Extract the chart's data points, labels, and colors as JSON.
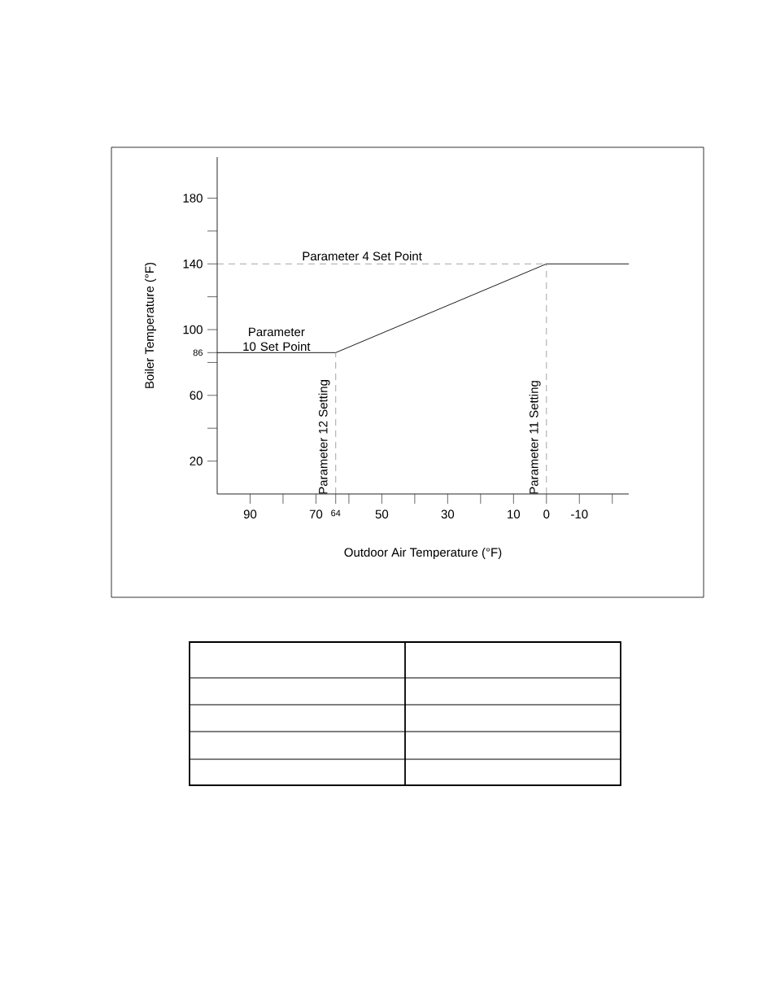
{
  "chart_data": {
    "type": "line",
    "xlabel": "Outdoor Air Temperature (°F)",
    "ylabel": "Boiler Temperature (°F)",
    "x": [
      100,
      64,
      0,
      -25
    ],
    "series": [
      {
        "color": "#000000",
        "values": [
          86,
          86,
          140,
          140
        ]
      }
    ],
    "xlim": [
      100,
      -25
    ],
    "ylim": [
      0,
      205
    ],
    "xticks": [
      90,
      {
        "value": 80,
        "label": null
      },
      70,
      64,
      {
        "value": 60,
        "label": null
      },
      50,
      {
        "value": 40,
        "label": null
      },
      30,
      {
        "value": 20,
        "label": null
      },
      10,
      0,
      -10,
      {
        "value": -20,
        "label": null
      }
    ],
    "yticks": [
      20,
      {
        "value": 40,
        "label": null
      },
      60,
      {
        "value": 80,
        "label": null
      },
      86,
      100,
      {
        "value": 120,
        "label": null
      },
      140,
      {
        "value": 160,
        "label": null
      },
      180
    ],
    "ref_lines": [
      {
        "axis": "y",
        "value": 140,
        "label": "Parameter 4 Set Point",
        "color": "#666666",
        "line_style": "dashed"
      },
      {
        "axis": "x",
        "value": 64,
        "label": "Parameter 12 Setting",
        "color": "#666666",
        "line_style": "dashed"
      },
      {
        "axis": "x",
        "value": 0,
        "label": "Parameter 11 Setting",
        "color": "#666666",
        "line_style": "dashed"
      }
    ],
    "annotations": [
      {
        "text": "Parameter 10 Set Point",
        "x": 82,
        "y": 86
      }
    ],
    "marker": "none",
    "line_style": "solid"
  }
}
